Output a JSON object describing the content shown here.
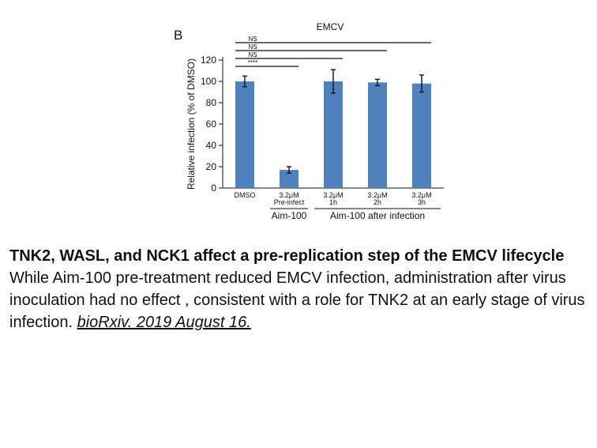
{
  "chart_data": {
    "type": "bar",
    "panel_label": "B",
    "title": "EMCV",
    "ylabel": "Relative infection (% of DMSO)",
    "ylim": [
      0,
      120
    ],
    "yticks": [
      0,
      20,
      40,
      60,
      80,
      100,
      120
    ],
    "categories": [
      {
        "line1": "DMSO",
        "line2": ""
      },
      {
        "line1": "3.2μM",
        "line2": "Pre-infect"
      },
      {
        "line1": "3.2μM",
        "line2": "1h"
      },
      {
        "line1": "3.2μM",
        "line2": "2h"
      },
      {
        "line1": "3.2μM",
        "line2": "3h"
      }
    ],
    "values": [
      100,
      17,
      100,
      99,
      98
    ],
    "errors": [
      5,
      3,
      11,
      3,
      8
    ],
    "bar_color": "#4f81bd",
    "group_labels": [
      {
        "text": "Aim-100",
        "from": 1,
        "to": 1
      },
      {
        "text": "Aim-100 after infection",
        "from": 2,
        "to": 4
      }
    ],
    "significance": [
      {
        "text": "****",
        "from": 0,
        "to": 1
      },
      {
        "text": "NS",
        "from": 0,
        "to": 2
      },
      {
        "text": "NS",
        "from": 0,
        "to": 3
      },
      {
        "text": "NS",
        "from": 0,
        "to": 4
      }
    ],
    "grid": false
  },
  "caption": {
    "title": "TNK2, WASL, and NCK1 affect a pre-replication step of the EMCV lifecycle",
    "body": "While Aim-100 pre-treatment reduced EMCV infection, administration after virus inoculation had no effect , consistent with a role for TNK2 at an early stage of virus infection. ",
    "citation": "bioRxiv. 2019 August 16."
  }
}
